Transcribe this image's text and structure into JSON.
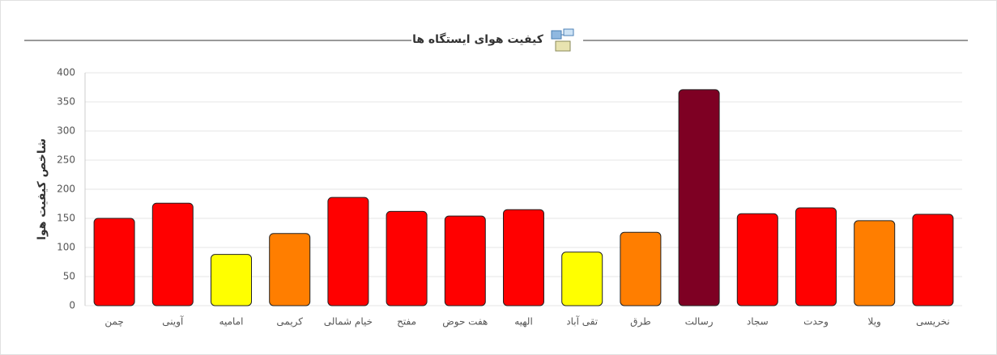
{
  "chart_data": {
    "type": "bar",
    "title": "کیفیت هوای ایستگاه ها",
    "y_label": "شاخص کیفیت هوا",
    "categories": [
      "چمن",
      "آوینی",
      "امامیه",
      "کریمی",
      "خیام شمالی",
      "مفتح",
      "هفت حوض",
      "الهیه",
      "تقی آباد",
      "طرق",
      "رسالت",
      "سجاد",
      "وحدت",
      "ویلا",
      "نخریسی"
    ],
    "values": [
      150,
      176,
      88,
      124,
      186,
      162,
      154,
      165,
      92,
      126,
      371,
      158,
      168,
      146,
      157
    ],
    "colors": [
      "#ff0000",
      "#ff0000",
      "#ffff00",
      "#ff7e00",
      "#ff0000",
      "#ff0000",
      "#ff0000",
      "#ff0000",
      "#ffff00",
      "#ff7e00",
      "#7e0023",
      "#ff0000",
      "#ff0000",
      "#ff7e00",
      "#ff0000"
    ],
    "ylim": [
      0,
      400
    ],
    "yticks": [
      0,
      50,
      100,
      150,
      200,
      250,
      300,
      350,
      400
    ],
    "grid": true
  }
}
